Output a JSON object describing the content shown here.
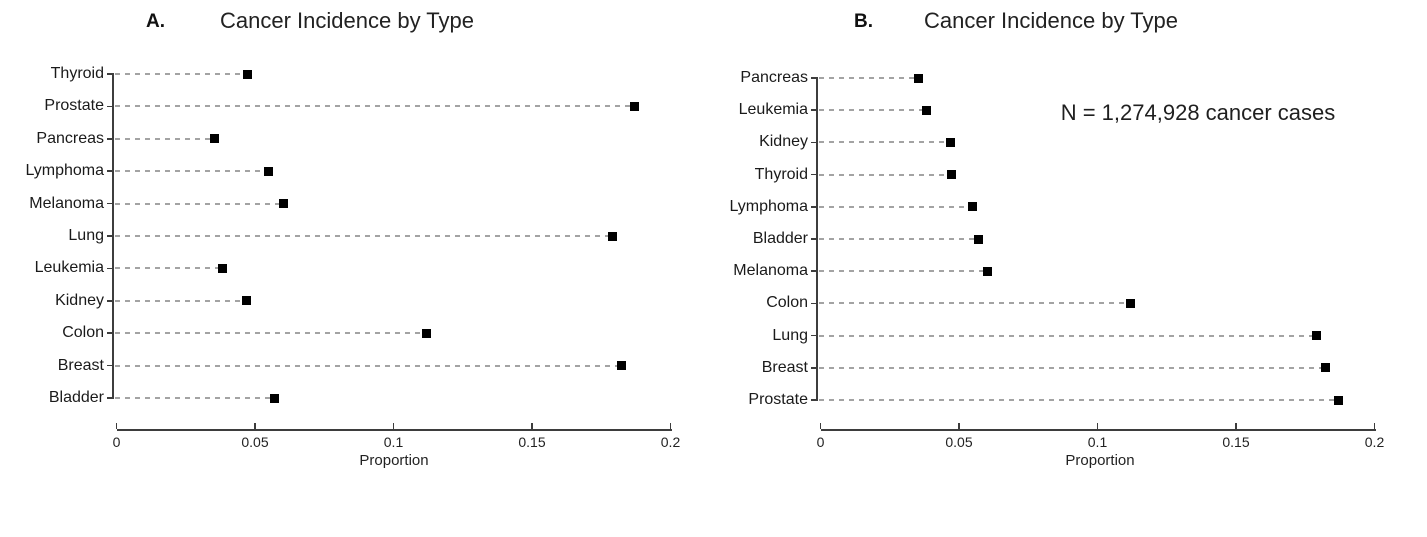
{
  "colors": {
    "dot": "#000000",
    "dashed_guide": "#a3a3a3",
    "axis": "#3d3d3d",
    "text": "#1a1a1a",
    "background": "#ffffff"
  },
  "chart_data": [
    {
      "type": "dot",
      "panel_label": "A.",
      "title": "Cancer Incidence by Type",
      "categories": [
        "Thyroid",
        "Prostate",
        "Pancreas",
        "Lymphoma",
        "Melanoma",
        "Lung",
        "Leukemia",
        "Kidney",
        "Colon",
        "Breast",
        "Bladder"
      ],
      "values": [
        0.0472,
        0.1871,
        0.0355,
        0.0547,
        0.0602,
        0.179,
        0.0381,
        0.047,
        0.112,
        0.1822,
        0.0569
      ],
      "xlabel": "Proportion",
      "xlim": [
        0,
        0.2
      ],
      "xticks": [
        0,
        0.05,
        0.1,
        0.15,
        0.2
      ],
      "xtick_labels": [
        "0",
        "0.05",
        "0.1",
        "0.15",
        "0.2"
      ],
      "marker": "filled-square",
      "guide_lines": "dashed-from-axis-to-point",
      "legend": "none"
    },
    {
      "type": "dot",
      "panel_label": "B.",
      "title": "Cancer Incidence by Type",
      "categories": [
        "Pancreas",
        "Leukemia",
        "Kidney",
        "Thyroid",
        "Lymphoma",
        "Bladder",
        "Melanoma",
        "Colon",
        "Lung",
        "Breast",
        "Prostate"
      ],
      "values": [
        0.0355,
        0.0381,
        0.047,
        0.0472,
        0.0547,
        0.0569,
        0.0602,
        0.112,
        0.179,
        0.1822,
        0.1871
      ],
      "annotation": "N = 1,274,928 cancer cases",
      "xlabel": "Proportion",
      "xlim": [
        0,
        0.2
      ],
      "xticks": [
        0,
        0.05,
        0.1,
        0.15,
        0.2
      ],
      "xtick_labels": [
        "0",
        "0.05",
        "0.1",
        "0.15",
        "0.2"
      ],
      "marker": "filled-square",
      "guide_lines": "dashed-from-axis-to-point",
      "legend": "none"
    }
  ]
}
